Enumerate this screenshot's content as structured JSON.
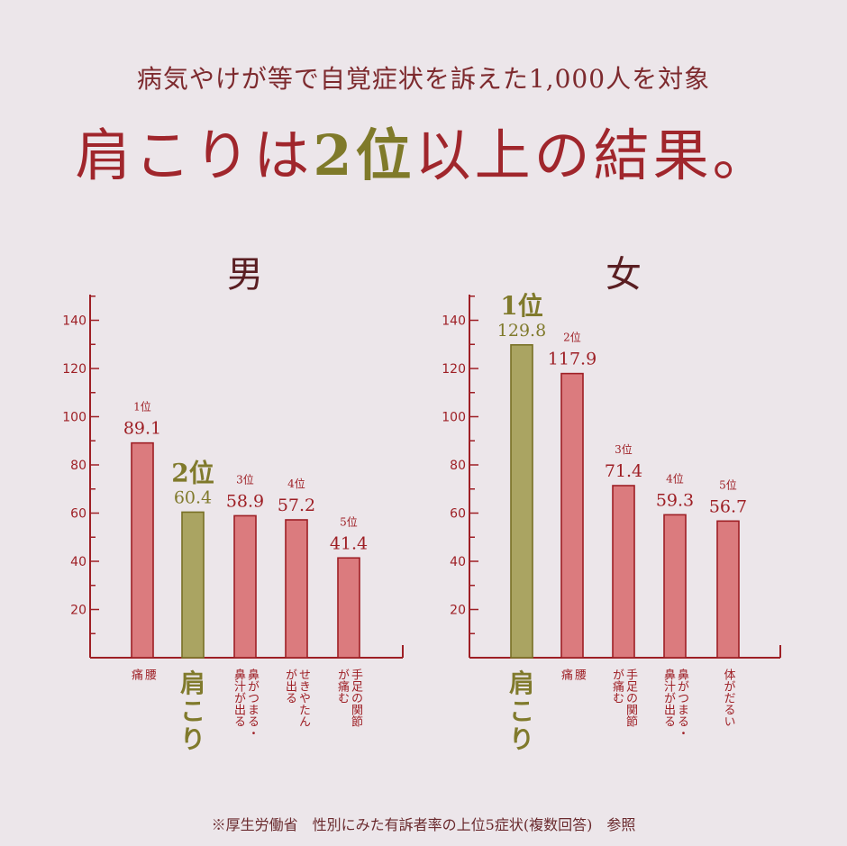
{
  "header": {
    "subtitle": "病気やけが等で自覚症状を訴えた1,000人を対象",
    "headline_pre": "肩こりは",
    "headline_highlight": "2位",
    "headline_post": "以上の結果。"
  },
  "footnote": "※厚生労働省　性別にみた有訴者率の上位5症状(複数回答)　参照",
  "colors": {
    "bar": "#db7b7e",
    "bar_stroke": "#9e1f25",
    "highlight_bar": "#aaa462",
    "highlight_stroke": "#787025",
    "axis": "#9e1f25",
    "label": "#9e1f25",
    "highlight_label": "#807a2c"
  },
  "chart_data": [
    {
      "type": "bar",
      "title": "男",
      "ylim": [
        0,
        150
      ],
      "yticks": [
        20,
        40,
        60,
        80,
        100,
        120,
        140
      ],
      "categories": [
        "腰痛",
        "肩こり",
        "鼻がつまる・鼻汁が出る",
        "せきやたんが出る",
        "手足の関節が痛む"
      ],
      "category_lines": [
        [
          "腰",
          "痛"
        ],
        [
          "肩",
          "こ",
          "り"
        ],
        [
          "鼻がつまる・",
          "鼻汁が出る"
        ],
        [
          "せきやたん",
          "が出る"
        ],
        [
          "手足の関節",
          "が痛む"
        ]
      ],
      "values": [
        89.1,
        60.4,
        58.9,
        57.2,
        41.4
      ],
      "value_labels": [
        "89.1",
        "60.4",
        "58.9",
        "57.2",
        "41.4"
      ],
      "rank_labels": [
        "1位",
        "2位",
        "3位",
        "4位",
        "5位"
      ],
      "highlight_index": 1
    },
    {
      "type": "bar",
      "title": "女",
      "ylim": [
        0,
        150
      ],
      "yticks": [
        20,
        40,
        60,
        80,
        100,
        120,
        140
      ],
      "categories": [
        "肩こり",
        "腰痛",
        "手足の関節が痛む",
        "鼻がつまる・鼻汁が出る",
        "体がだるい"
      ],
      "category_lines": [
        [
          "肩",
          "こ",
          "り"
        ],
        [
          "腰",
          "痛"
        ],
        [
          "手足の関節",
          "が痛む"
        ],
        [
          "鼻がつまる・",
          "鼻汁が出る"
        ],
        [
          "体がだるい"
        ]
      ],
      "values": [
        129.8,
        117.9,
        71.4,
        59.3,
        56.7
      ],
      "value_labels": [
        "129.8",
        "117.9",
        "71.4",
        "59.3",
        "56.7"
      ],
      "rank_labels": [
        "1位",
        "2位",
        "3位",
        "4位",
        "5位"
      ],
      "highlight_index": 0
    }
  ]
}
